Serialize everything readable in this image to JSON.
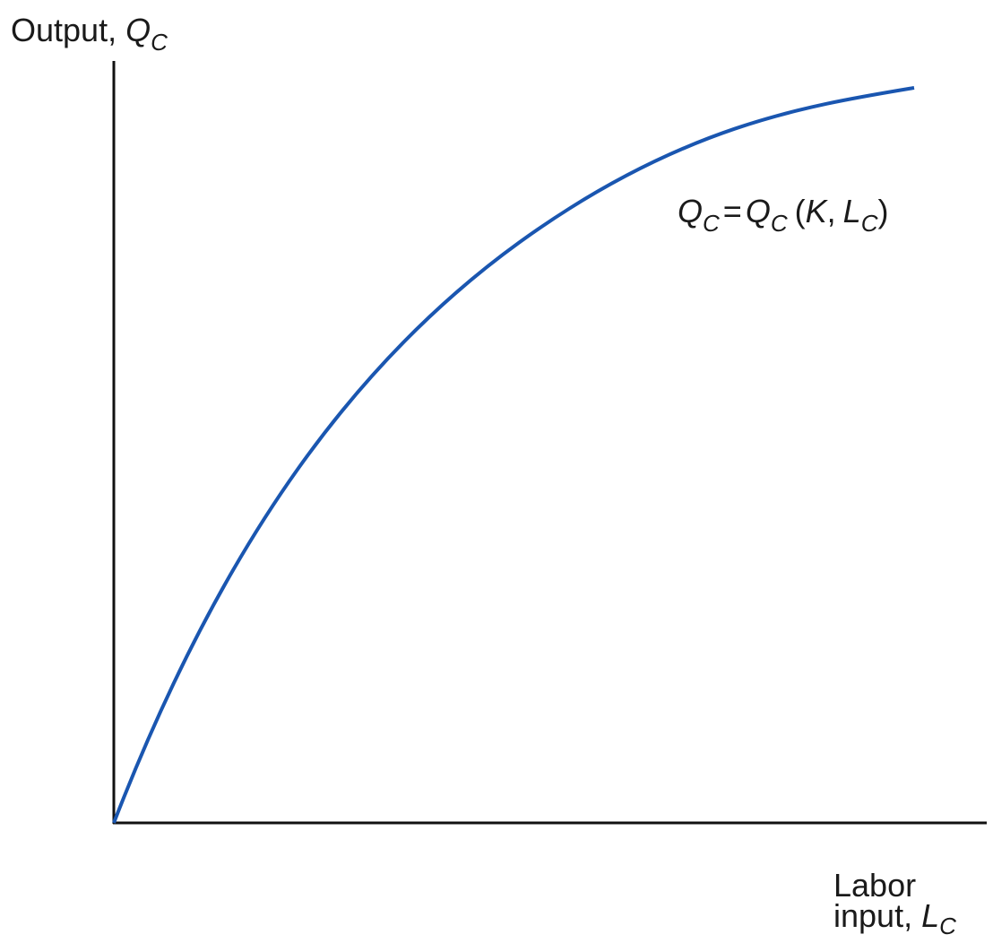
{
  "diagram": {
    "y_axis_label": {
      "text": "Output,",
      "symbol": "Q",
      "subscript": "C"
    },
    "x_axis_label": {
      "line1": "Labor",
      "text": "input,",
      "symbol": "L",
      "subscript": "C"
    },
    "curve_label": {
      "parts": [
        "Q",
        "C",
        "=",
        "Q",
        "C",
        "(",
        "K",
        ",",
        "L",
        "C",
        ")"
      ]
    }
  }
}
